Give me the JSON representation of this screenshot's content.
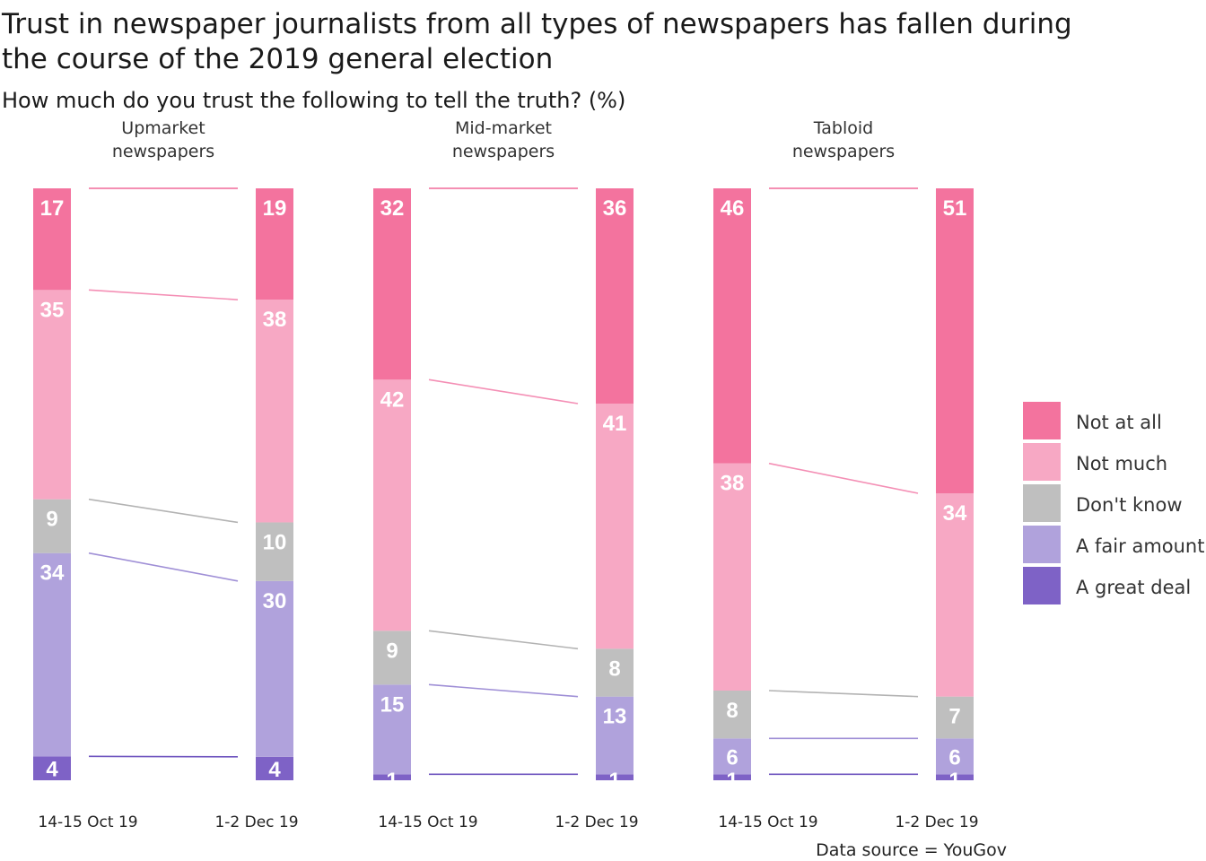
{
  "title_lines": [
    "Trust in newspaper journalists from all types of newspapers has fallen during",
    "the course of the 2019 general election"
  ],
  "subtitle": "How much do you trust the following to tell the truth? (%)",
  "source": "Data source = YouGov",
  "chart_data": {
    "type": "bar",
    "stacked": true,
    "categories_order": [
      "A great deal",
      "A fair amount",
      "Don't know",
      "Not much",
      "Not at all"
    ],
    "legend": [
      {
        "label": "Not at all",
        "color": "#f3739e"
      },
      {
        "label": "Not much",
        "color": "#f7a8c4"
      },
      {
        "label": "Don't know",
        "color": "#bfbfbf"
      },
      {
        "label": "A fair amount",
        "color": "#b0a2dc"
      },
      {
        "label": "A great deal",
        "color": "#7e62c6"
      }
    ],
    "legend_position": "right",
    "panels": [
      {
        "title_lines": [
          "Upmarket",
          "newspapers"
        ],
        "dates": [
          "14-15 Oct 19",
          "1-2 Dec 19"
        ],
        "values": [
          {
            "A great deal": 4,
            "A fair amount": 34,
            "Don't know": 9,
            "Not much": 35,
            "Not at all": 17
          },
          {
            "A great deal": 4,
            "A fair amount": 30,
            "Don't know": 10,
            "Not much": 38,
            "Not at all": 19
          }
        ]
      },
      {
        "title_lines": [
          "Mid-market",
          "newspapers"
        ],
        "dates": [
          "14-15 Oct 19",
          "1-2 Dec 19"
        ],
        "values": [
          {
            "A great deal": 1,
            "A fair amount": 15,
            "Don't know": 9,
            "Not much": 42,
            "Not at all": 32
          },
          {
            "A great deal": 1,
            "A fair amount": 13,
            "Don't know": 8,
            "Not much": 41,
            "Not at all": 36
          }
        ]
      },
      {
        "title_lines": [
          "Tabloid",
          "newspapers"
        ],
        "dates": [
          "14-15 Oct 19",
          "1-2 Dec 19"
        ],
        "values": [
          {
            "A great deal": 1,
            "A fair amount": 6,
            "Don't know": 8,
            "Not much": 38,
            "Not at all": 46
          },
          {
            "A great deal": 1,
            "A fair amount": 6,
            "Don't know": 7,
            "Not much": 34,
            "Not at all": 51
          }
        ]
      }
    ],
    "connector_colors": {
      "Not at all": "#f06a9a",
      "Not much": "#f48fb5",
      "Don't know": "#b3b3b3",
      "A fair amount": "#9f8fd6",
      "A great deal": "#6f55bf"
    }
  }
}
